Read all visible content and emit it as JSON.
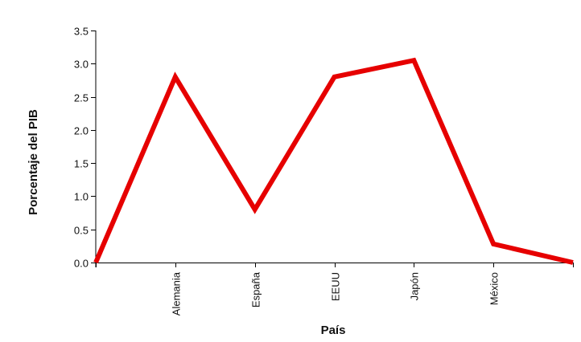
{
  "chart_data": {
    "type": "line",
    "title": "",
    "xlabel": "País",
    "ylabel": "Porcentaje del PIB",
    "categories": [
      "",
      "Alemania",
      "España",
      "EEUU",
      "Japón",
      "México",
      ""
    ],
    "series": [
      {
        "values": [
          0.0,
          2.8,
          0.8,
          2.8,
          3.05,
          0.28,
          0.0
        ],
        "color": "#e60000"
      }
    ],
    "yticks": [
      "0.0",
      "0.5",
      "1.0",
      "1.5",
      "2.0",
      "2.5",
      "3.0",
      "3.5"
    ],
    "ylim": [
      0,
      3.5
    ],
    "grid": false,
    "legend": "none"
  }
}
